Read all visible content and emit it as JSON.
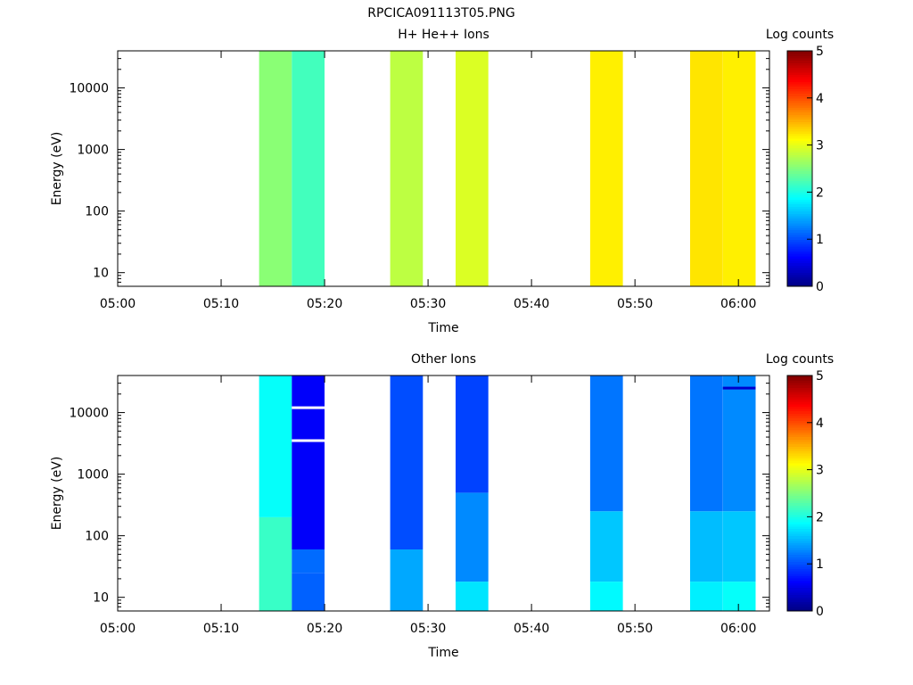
{
  "figure_title": "RPCICA091113T05.PNG",
  "chart_data": [
    {
      "type": "heatmap",
      "title": "H+ He++ Ions",
      "xlabel": "Time",
      "ylabel": "Energy (eV)",
      "x_ticks": [
        "05:00",
        "05:10",
        "05:20",
        "05:30",
        "05:40",
        "05:50",
        "06:00"
      ],
      "y_ticks": [
        "10",
        "100",
        "1000",
        "10000"
      ],
      "y_scale": "log",
      "x_range": [
        "05:00",
        "06:03"
      ],
      "y_range": [
        6,
        40000
      ],
      "colorbar_label": "Log counts",
      "colorbar_ticks": [
        "0",
        "1",
        "2",
        "3",
        "4",
        "5"
      ],
      "colorbar_range": [
        0,
        5
      ],
      "colormap": "jet",
      "columns": [
        {
          "start": "05:13:40",
          "end": "05:16:50",
          "bands": [
            {
              "from": 6,
              "to": 40000,
              "log_counts": 2.55
            }
          ]
        },
        {
          "start": "05:16:50",
          "end": "05:20:00",
          "bands": [
            {
              "from": 6,
              "to": 40000,
              "log_counts": 2.2
            }
          ]
        },
        {
          "start": "05:26:20",
          "end": "05:29:30",
          "bands": [
            {
              "from": 6,
              "to": 40000,
              "log_counts": 2.8
            }
          ]
        },
        {
          "start": "05:32:40",
          "end": "05:35:50",
          "bands": [
            {
              "from": 6,
              "to": 40000,
              "log_counts": 2.95
            }
          ]
        },
        {
          "start": "05:45:40",
          "end": "05:48:50",
          "bands": [
            {
              "from": 6,
              "to": 40000,
              "log_counts": 3.2
            }
          ]
        },
        {
          "start": "05:55:20",
          "end": "05:58:30",
          "bands": [
            {
              "from": 6,
              "to": 40000,
              "log_counts": 3.25
            }
          ]
        },
        {
          "start": "05:58:30",
          "end": "06:01:40",
          "bands": [
            {
              "from": 6,
              "to": 40000,
              "log_counts": 3.2
            }
          ]
        }
      ]
    },
    {
      "type": "heatmap",
      "title": "Other Ions",
      "xlabel": "Time",
      "ylabel": "Energy (eV)",
      "x_ticks": [
        "05:00",
        "05:10",
        "05:20",
        "05:30",
        "05:40",
        "05:50",
        "06:00"
      ],
      "y_ticks": [
        "10",
        "100",
        "1000",
        "10000"
      ],
      "y_scale": "log",
      "x_range": [
        "05:00",
        "06:03"
      ],
      "y_range": [
        6,
        40000
      ],
      "colorbar_label": "Log counts",
      "colorbar_ticks": [
        "0",
        "1",
        "2",
        "3",
        "4",
        "5"
      ],
      "colorbar_range": [
        0,
        5
      ],
      "colormap": "jet",
      "columns": [
        {
          "start": "05:13:40",
          "end": "05:16:50",
          "bands": [
            {
              "from": 6,
              "to": 200,
              "log_counts": 2.15
            },
            {
              "from": 200,
              "to": 40000,
              "log_counts": 1.9
            }
          ]
        },
        {
          "start": "05:16:50",
          "end": "05:20:00",
          "bands": [
            {
              "from": 6,
              "to": 25,
              "log_counts": 1.1
            },
            {
              "from": 25,
              "to": 60,
              "log_counts": 1.15
            },
            {
              "from": 60,
              "to": 40000,
              "log_counts": 0.6
            }
          ],
          "highlights": [
            {
              "energy": 12000,
              "color": "#ffffff"
            },
            {
              "energy": 3500,
              "color": "#ffffff"
            }
          ]
        },
        {
          "start": "05:26:20",
          "end": "05:29:30",
          "bands": [
            {
              "from": 6,
              "to": 60,
              "log_counts": 1.45
            },
            {
              "from": 60,
              "to": 40000,
              "log_counts": 1.0
            }
          ]
        },
        {
          "start": "05:32:40",
          "end": "05:35:50",
          "bands": [
            {
              "from": 6,
              "to": 18,
              "log_counts": 1.75
            },
            {
              "from": 18,
              "to": 500,
              "log_counts": 1.3
            },
            {
              "from": 500,
              "to": 40000,
              "log_counts": 0.95
            }
          ]
        },
        {
          "start": "05:45:40",
          "end": "05:48:50",
          "bands": [
            {
              "from": 6,
              "to": 18,
              "log_counts": 1.85
            },
            {
              "from": 18,
              "to": 250,
              "log_counts": 1.6
            },
            {
              "from": 250,
              "to": 40000,
              "log_counts": 1.2
            }
          ]
        },
        {
          "start": "05:55:20",
          "end": "05:58:30",
          "bands": [
            {
              "from": 6,
              "to": 18,
              "log_counts": 1.8
            },
            {
              "from": 18,
              "to": 250,
              "log_counts": 1.55
            },
            {
              "from": 250,
              "to": 40000,
              "log_counts": 1.2
            }
          ]
        },
        {
          "start": "05:58:30",
          "end": "06:01:40",
          "bands": [
            {
              "from": 6,
              "to": 18,
              "log_counts": 1.9
            },
            {
              "from": 18,
              "to": 250,
              "log_counts": 1.6
            },
            {
              "from": 250,
              "to": 40000,
              "log_counts": 1.3
            }
          ],
          "highlights": [
            {
              "energy": 25000,
              "color": "#0000cc"
            }
          ]
        }
      ]
    }
  ]
}
